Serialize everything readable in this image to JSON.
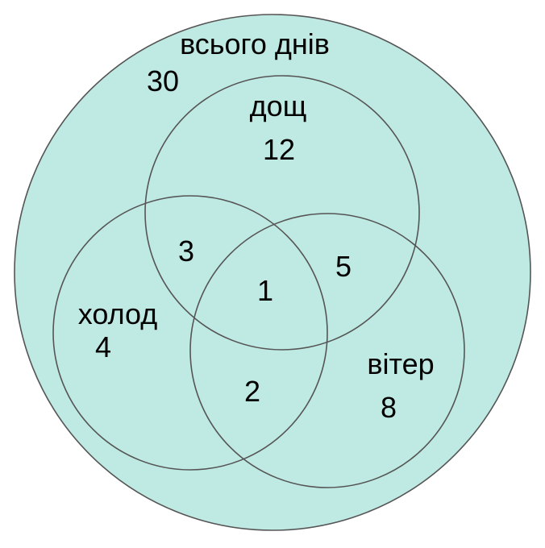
{
  "colors": {
    "universe_fill": "#bfe9e3",
    "stroke": "#555555",
    "text": "#000000"
  },
  "universe": {
    "label": "всього днів",
    "total": "30"
  },
  "sets": {
    "rain": {
      "label": "дощ",
      "only": "12"
    },
    "cold": {
      "label": "холод",
      "only": "4"
    },
    "wind": {
      "label": "вітер",
      "only": "8"
    }
  },
  "intersections": {
    "rain_cold": "3",
    "rain_wind": "5",
    "cold_wind": "2",
    "all_three": "1"
  }
}
